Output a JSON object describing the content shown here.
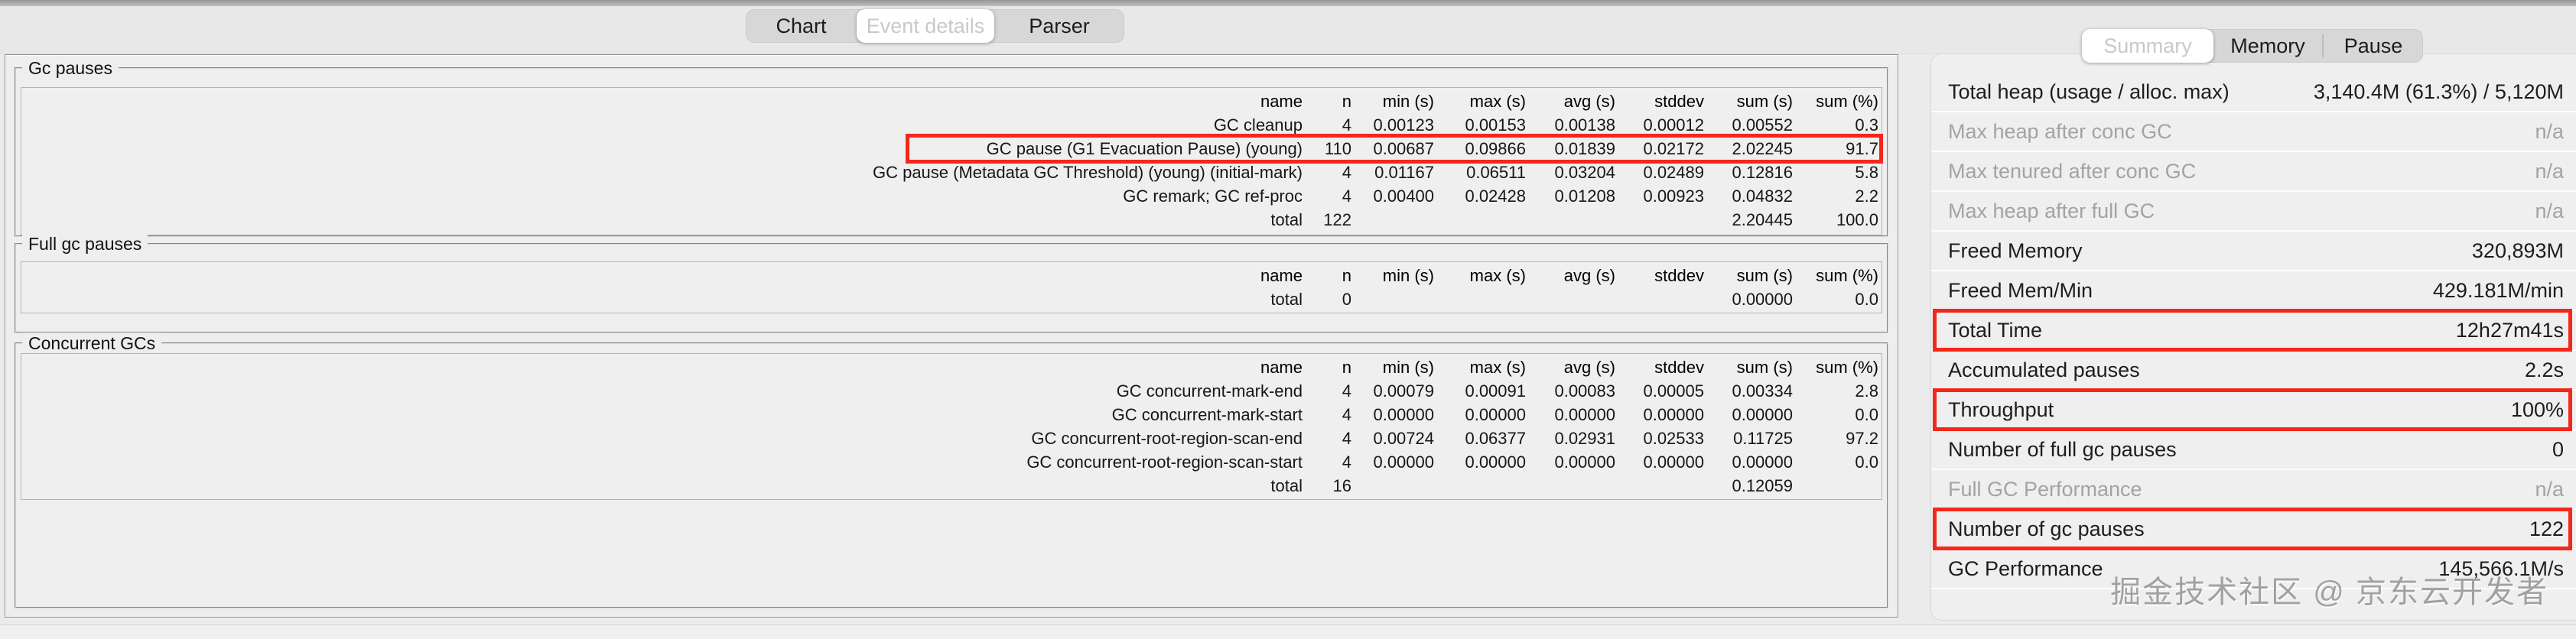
{
  "colors": {
    "highlight_box": "#f3281b",
    "panel_bg": "#eeeeee",
    "window_bg": "#ebebeb"
  },
  "main_tabs": {
    "items": [
      {
        "label": "Chart",
        "selected": false
      },
      {
        "label": "Event details",
        "selected": true
      },
      {
        "label": "Parser",
        "selected": false
      }
    ]
  },
  "summary_tabs": {
    "items": [
      {
        "label": "Summary",
        "selected": true
      },
      {
        "label": "Memory",
        "selected": false
      },
      {
        "label": "Pause",
        "selected": false
      }
    ]
  },
  "sections": [
    {
      "title": "Gc pauses",
      "columns": [
        "name",
        "n",
        "min (s)",
        "max (s)",
        "avg (s)",
        "stddev",
        "sum (s)",
        "sum (%)"
      ],
      "rows": [
        {
          "name": "GC cleanup",
          "n": "4",
          "min": "0.00123",
          "max": "0.00153",
          "avg": "0.00138",
          "stddev": "0.00012",
          "sum": "0.00552",
          "sum_pct": "0.3"
        },
        {
          "name": "GC pause (G1 Evacuation Pause) (young)",
          "n": "110",
          "min": "0.00687",
          "max": "0.09866",
          "avg": "0.01839",
          "stddev": "0.02172",
          "sum": "2.02245",
          "sum_pct": "91.7",
          "highlight": true
        },
        {
          "name": "GC pause (Metadata GC Threshold) (young) (initial-mark)",
          "n": "4",
          "min": "0.01167",
          "max": "0.06511",
          "avg": "0.03204",
          "stddev": "0.02489",
          "sum": "0.12816",
          "sum_pct": "5.8"
        },
        {
          "name": "GC remark; GC ref-proc",
          "n": "4",
          "min": "0.00400",
          "max": "0.02428",
          "avg": "0.01208",
          "stddev": "0.00923",
          "sum": "0.04832",
          "sum_pct": "2.2"
        },
        {
          "name": "total",
          "n": "122",
          "sum": "2.20445",
          "sum_pct": "100.0",
          "total": true
        }
      ]
    },
    {
      "title": "Full gc pauses",
      "columns": [
        "name",
        "n",
        "min (s)",
        "max (s)",
        "avg (s)",
        "stddev",
        "sum (s)",
        "sum (%)"
      ],
      "rows": [
        {
          "name": "total",
          "n": "0",
          "sum": "0.00000",
          "sum_pct": "0.0",
          "total": true
        }
      ]
    },
    {
      "title": "Concurrent GCs",
      "columns": [
        "name",
        "n",
        "min (s)",
        "max (s)",
        "avg (s)",
        "stddev",
        "sum (s)",
        "sum (%)"
      ],
      "rows": [
        {
          "name": "GC concurrent-mark-end",
          "n": "4",
          "min": "0.00079",
          "max": "0.00091",
          "avg": "0.00083",
          "stddev": "0.00005",
          "sum": "0.00334",
          "sum_pct": "2.8"
        },
        {
          "name": "GC concurrent-mark-start",
          "n": "4",
          "min": "0.00000",
          "max": "0.00000",
          "avg": "0.00000",
          "stddev": "0.00000",
          "sum": "0.00000",
          "sum_pct": "0.0"
        },
        {
          "name": "GC concurrent-root-region-scan-end",
          "n": "4",
          "min": "0.00724",
          "max": "0.06377",
          "avg": "0.02931",
          "stddev": "0.02533",
          "sum": "0.11725",
          "sum_pct": "97.2"
        },
        {
          "name": "GC concurrent-root-region-scan-start",
          "n": "4",
          "min": "0.00000",
          "max": "0.00000",
          "avg": "0.00000",
          "stddev": "0.00000",
          "sum": "0.00000",
          "sum_pct": "0.0"
        },
        {
          "name": "total",
          "n": "16",
          "sum": "0.12059",
          "total": true
        }
      ]
    }
  ],
  "summary_panel": {
    "rows": [
      {
        "label": "Total heap (usage / alloc. max)",
        "value": "3,140.4M (61.3%) / 5,120M"
      },
      {
        "label": "Max heap after conc GC",
        "value": "n/a",
        "dim": true
      },
      {
        "label": "Max tenured after conc GC",
        "value": "n/a",
        "dim": true
      },
      {
        "label": "Max heap after full GC",
        "value": "n/a",
        "dim": true
      },
      {
        "label": "Freed Memory",
        "value": "320,893M"
      },
      {
        "label": "Freed Mem/Min",
        "value": "429.181M/min"
      },
      {
        "label": "Total Time",
        "value": "12h27m41s",
        "boxed": true
      },
      {
        "label": "Accumulated pauses",
        "value": "2.2s"
      },
      {
        "label": "Throughput",
        "value": "100%",
        "boxed": true
      },
      {
        "label": "Number of full gc pauses",
        "value": "0"
      },
      {
        "label": "Full GC Performance",
        "value": "n/a",
        "dim": true
      },
      {
        "label": "Number of gc pauses",
        "value": "122",
        "boxed": true
      },
      {
        "label": "GC Performance",
        "value": "145,566.1M/s"
      }
    ]
  },
  "watermark": {
    "text": "掘金技术社区 @ 京东云开发者"
  }
}
